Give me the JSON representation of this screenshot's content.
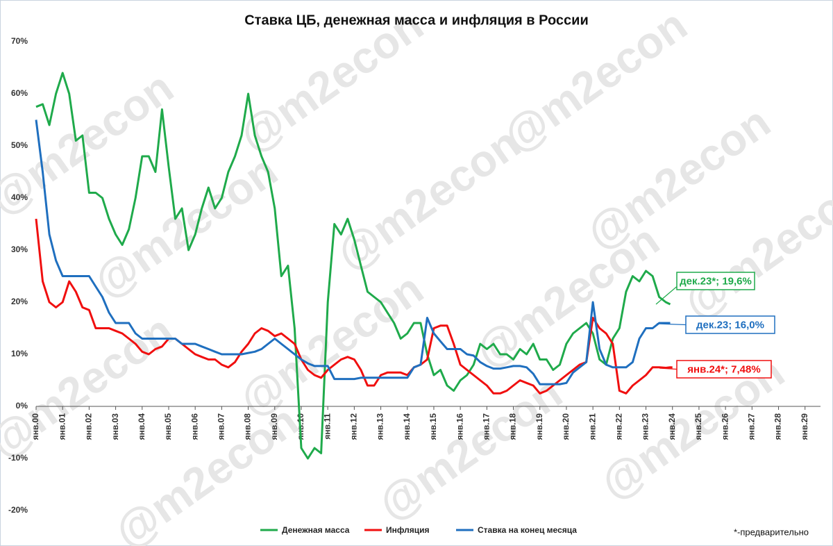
{
  "chart_data": {
    "type": "line",
    "title": "Ставка ЦБ, денежная масса и инфляция в России",
    "watermark": "@m2econ",
    "footnote": "*-предварительно",
    "x": [
      0,
      3,
      6,
      9,
      12,
      15,
      18,
      21,
      24,
      27,
      30,
      33,
      36,
      39,
      42,
      45,
      48,
      51,
      54,
      57,
      60,
      63,
      66,
      69,
      72,
      75,
      78,
      81,
      84,
      87,
      90,
      93,
      96,
      99,
      102,
      105,
      108,
      111,
      114,
      117,
      120,
      123,
      126,
      129,
      132,
      135,
      138,
      141,
      144,
      147,
      150,
      153,
      156,
      159,
      162,
      165,
      168,
      171,
      174,
      177,
      180,
      183,
      186,
      189,
      192,
      195,
      198,
      201,
      204,
      207,
      210,
      213,
      216,
      219,
      222,
      225,
      228,
      231,
      234,
      237,
      240,
      243,
      246,
      249,
      252,
      255,
      258,
      261,
      264,
      267,
      270,
      273,
      276,
      279,
      282,
      285,
      287,
      288
    ],
    "xlim": [
      0,
      355
    ],
    "xticks": [
      {
        "value": 0,
        "label": "янв.00"
      },
      {
        "value": 12,
        "label": "янв.01"
      },
      {
        "value": 24,
        "label": "янв.02"
      },
      {
        "value": 36,
        "label": "янв.03"
      },
      {
        "value": 48,
        "label": "янв.04"
      },
      {
        "value": 60,
        "label": "янв.05"
      },
      {
        "value": 72,
        "label": "янв.06"
      },
      {
        "value": 84,
        "label": "янв.07"
      },
      {
        "value": 96,
        "label": "янв.08"
      },
      {
        "value": 108,
        "label": "янв.09"
      },
      {
        "value": 120,
        "label": "янв.10"
      },
      {
        "value": 132,
        "label": "янв.11"
      },
      {
        "value": 144,
        "label": "янв.12"
      },
      {
        "value": 156,
        "label": "янв.13"
      },
      {
        "value": 168,
        "label": "янв.14"
      },
      {
        "value": 180,
        "label": "янв.15"
      },
      {
        "value": 192,
        "label": "янв.16"
      },
      {
        "value": 204,
        "label": "янв.17"
      },
      {
        "value": 216,
        "label": "янв.18"
      },
      {
        "value": 228,
        "label": "янв.19"
      },
      {
        "value": 240,
        "label": "янв.20"
      },
      {
        "value": 252,
        "label": "янв.21"
      },
      {
        "value": 264,
        "label": "янв.22"
      },
      {
        "value": 276,
        "label": "янв.23"
      },
      {
        "value": 288,
        "label": "янв.24"
      },
      {
        "value": 300,
        "label": "янв.25"
      },
      {
        "value": 312,
        "label": "янв.26"
      },
      {
        "value": 324,
        "label": "янв.27"
      },
      {
        "value": 336,
        "label": "янв.28"
      },
      {
        "value": 348,
        "label": "янв.29"
      }
    ],
    "ylim": [
      -20,
      70
    ],
    "yticks": [
      {
        "value": -20,
        "label": "-20%"
      },
      {
        "value": -10,
        "label": "-10%"
      },
      {
        "value": 0,
        "label": "0%"
      },
      {
        "value": 10,
        "label": "10%"
      },
      {
        "value": 20,
        "label": "20%"
      },
      {
        "value": 30,
        "label": "30%"
      },
      {
        "value": 40,
        "label": "40%"
      },
      {
        "value": 50,
        "label": "50%"
      },
      {
        "value": 60,
        "label": "60%"
      },
      {
        "value": 70,
        "label": "70%"
      }
    ],
    "grid": false,
    "series": [
      {
        "name": "Денежная масса",
        "color": "#1faa4b",
        "values": [
          57.5,
          58,
          54,
          60,
          64,
          60,
          51,
          52,
          41,
          41,
          40,
          36,
          33,
          31,
          34,
          40,
          48,
          48,
          45,
          57,
          46,
          36,
          38,
          30,
          33,
          38,
          42,
          38,
          40,
          45,
          48,
          52,
          60,
          52,
          48,
          45,
          38,
          25,
          27,
          15,
          -8,
          -10,
          -8,
          -9,
          20,
          35,
          33,
          36,
          32,
          27,
          22,
          21,
          20,
          18,
          16,
          13,
          14,
          16,
          16,
          10,
          6,
          7,
          4,
          3,
          5,
          6,
          8,
          12,
          11,
          12,
          10,
          10,
          9,
          11,
          10,
          12,
          9,
          9,
          7,
          8,
          12,
          14,
          15,
          16,
          14,
          9,
          8,
          13,
          15,
          22,
          25,
          24,
          26,
          25,
          21,
          20,
          19.6,
          null
        ]
      },
      {
        "name": "Инфляция",
        "color": "#f00f0f",
        "values": [
          36,
          24,
          20,
          19,
          20,
          24,
          22,
          19,
          18.5,
          15,
          15,
          15,
          14.5,
          14,
          13,
          12,
          10.5,
          10,
          11,
          11.5,
          13,
          13,
          12,
          11,
          10,
          9.5,
          9,
          9,
          8,
          7.5,
          8.5,
          10.5,
          12,
          14,
          15,
          14.5,
          13.5,
          14,
          13,
          12,
          9,
          7,
          6,
          5.5,
          7,
          8,
          9,
          9.5,
          9,
          7,
          4,
          4,
          6,
          6.5,
          6.5,
          6.5,
          6,
          7.5,
          8,
          9,
          15,
          15.5,
          15.5,
          12,
          8,
          7,
          6,
          5,
          4,
          2.5,
          2.5,
          3,
          4,
          5,
          4.5,
          4,
          2.5,
          3,
          4,
          5,
          6,
          7,
          8,
          8.5,
          17,
          15,
          14,
          12,
          3,
          2.5,
          4,
          5,
          6,
          7.5,
          7.5,
          7.4,
          7.5,
          7.48
        ]
      },
      {
        "name": "Ставка на конец месяца",
        "color": "#1f6fbf",
        "values": [
          55,
          45,
          33,
          28,
          25,
          25,
          25,
          25,
          25,
          23,
          21,
          18,
          16,
          16,
          16,
          14,
          13,
          13,
          13,
          13,
          13,
          13,
          12,
          12,
          12,
          11.5,
          11,
          10.5,
          10,
          10,
          10,
          10,
          10.25,
          10.5,
          11,
          12,
          13,
          12,
          11,
          10,
          9,
          8.25,
          7.75,
          7.75,
          7.75,
          5.25,
          5.25,
          5.25,
          5.25,
          5.5,
          5.5,
          5.5,
          5.5,
          5.5,
          5.5,
          5.5,
          5.5,
          7.5,
          8,
          17,
          14,
          12.5,
          11,
          11,
          11,
          10,
          9.75,
          8.5,
          7.75,
          7.25,
          7.25,
          7.5,
          7.75,
          7.75,
          7.5,
          6.25,
          4.25,
          4.25,
          4.25,
          4.25,
          4.5,
          6.5,
          7.5,
          8.5,
          20,
          11,
          8,
          7.5,
          7.5,
          7.5,
          8.5,
          13,
          15,
          15,
          16,
          16,
          16,
          null
        ]
      }
    ],
    "annotations": [
      {
        "text": "дек.23*; 19,6%",
        "color": "#1faa4b"
      },
      {
        "text": "дек.23; 16,0%",
        "color": "#1f6fbf"
      },
      {
        "text": "янв.24*; 7,48%",
        "color": "#f00f0f"
      }
    ]
  }
}
